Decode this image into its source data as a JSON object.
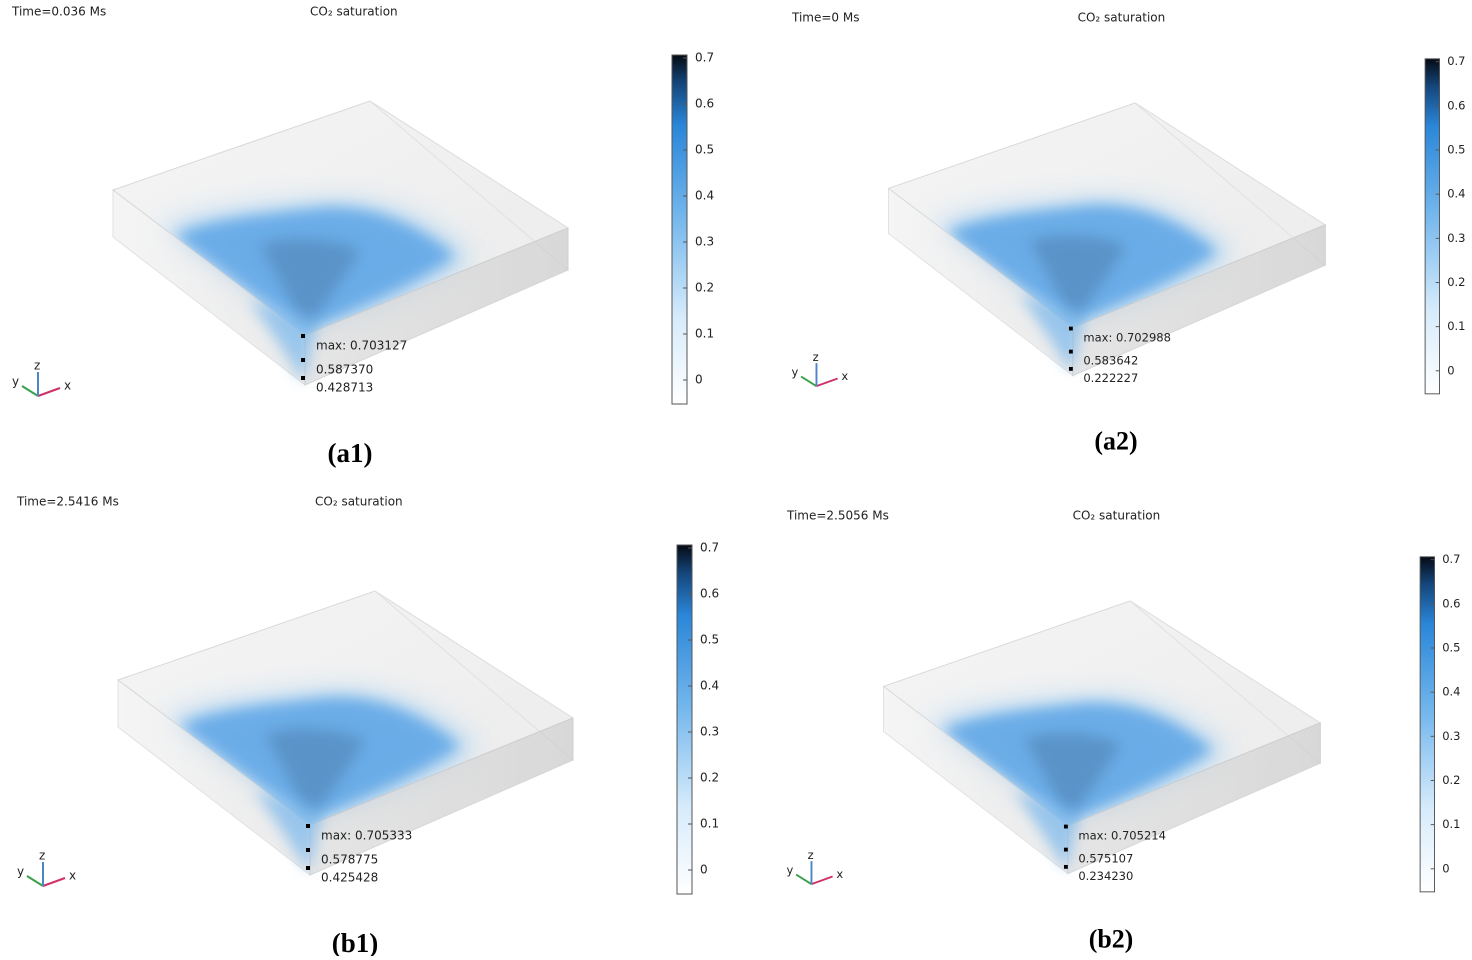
{
  "panels": [
    {
      "time": "Time=0.036 Ms",
      "title": "CO₂ saturation",
      "colorbar": [
        "0",
        "0.1",
        "0.2",
        "0.3",
        "0.4",
        "0.5",
        "0.6",
        "0.7"
      ],
      "points": [
        "max: 0.703127",
        "0.587370",
        "0.428713"
      ],
      "axes": [
        "x",
        "y",
        "z"
      ],
      "caption": "(a1)"
    },
    {
      "time": "Time=0 Ms",
      "title": "CO₂ saturation",
      "colorbar": [
        "0",
        "0.1",
        "0.2",
        "0.3",
        "0.4",
        "0.5",
        "0.6",
        "0.7"
      ],
      "points": [
        "max: 0.702988",
        "0.583642",
        "0.222227"
      ],
      "axes": [
        "x",
        "y",
        "z"
      ],
      "caption": "(a2)"
    },
    {
      "time": "Time=2.5416 Ms",
      "title": "CO₂ saturation",
      "colorbar": [
        "0",
        "0.1",
        "0.2",
        "0.3",
        "0.4",
        "0.5",
        "0.6",
        "0.7"
      ],
      "points": [
        "max: 0.705333",
        "0.578775",
        "0.425428"
      ],
      "axes": [
        "x",
        "y",
        "z"
      ],
      "caption": "(b1)"
    },
    {
      "time": "Time=2.5056 Ms",
      "title": "CO₂ saturation",
      "colorbar": [
        "0",
        "0.1",
        "0.2",
        "0.3",
        "0.4",
        "0.5",
        "0.6",
        "0.7"
      ],
      "points": [
        "max: 0.705214",
        "0.575107",
        "0.234230"
      ],
      "axes": [
        "x",
        "y",
        "z"
      ],
      "caption": "(b2)"
    }
  ]
}
